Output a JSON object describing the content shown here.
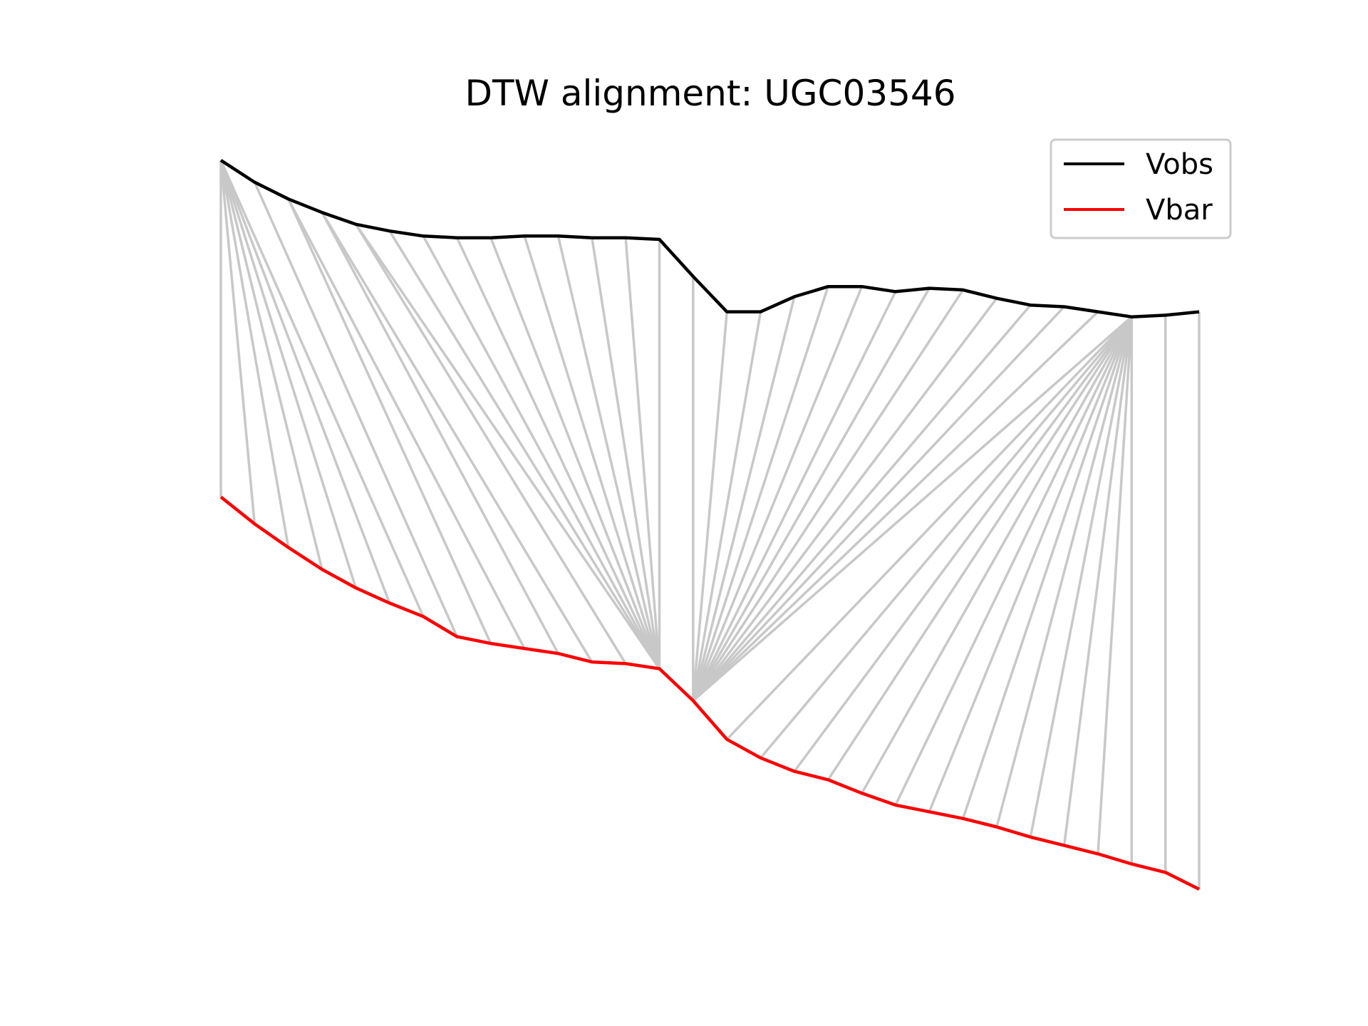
{
  "chart_data": {
    "type": "line",
    "title": "DTW alignment: UGC03546",
    "xlabel": "",
    "ylabel": "",
    "axes_visible": false,
    "grid": false,
    "legend_position": "top-right",
    "colors": {
      "Vobs": "#000000",
      "Vbar": "#ff0000",
      "connector": "#c8c8c8"
    },
    "x": [
      0,
      1,
      2,
      3,
      4,
      5,
      6,
      7,
      8,
      9,
      10,
      11,
      12,
      13,
      14,
      15,
      16,
      17,
      18,
      19,
      20,
      21,
      22,
      23,
      24,
      25,
      26,
      27,
      28,
      29
    ],
    "series": [
      {
        "name": "Vobs",
        "values": [
          10.0,
          9.87,
          9.77,
          9.69,
          9.62,
          9.58,
          9.55,
          9.54,
          9.54,
          9.55,
          9.55,
          9.54,
          9.54,
          9.53,
          9.31,
          9.1,
          9.1,
          9.19,
          9.25,
          9.25,
          9.22,
          9.24,
          9.23,
          9.18,
          9.14,
          9.13,
          9.1,
          9.07,
          9.08,
          9.1
        ]
      },
      {
        "name": "Vbar",
        "values": [
          8.0,
          7.84,
          7.7,
          7.57,
          7.46,
          7.37,
          7.29,
          7.17,
          7.13,
          7.1,
          7.07,
          7.02,
          7.01,
          6.98,
          6.79,
          6.56,
          6.45,
          6.37,
          6.32,
          6.24,
          6.17,
          6.13,
          6.09,
          6.04,
          5.98,
          5.93,
          5.88,
          5.82,
          5.77,
          5.67
        ]
      }
    ],
    "alignment_pairs": [
      [
        0,
        0
      ],
      [
        0,
        1
      ],
      [
        0,
        2
      ],
      [
        0,
        3
      ],
      [
        0,
        4
      ],
      [
        0,
        5
      ],
      [
        0,
        6
      ],
      [
        1,
        7
      ],
      [
        2,
        8
      ],
      [
        2,
        9
      ],
      [
        3,
        10
      ],
      [
        3,
        11
      ],
      [
        4,
        12
      ],
      [
        4,
        13
      ],
      [
        5,
        13
      ],
      [
        6,
        13
      ],
      [
        7,
        13
      ],
      [
        8,
        13
      ],
      [
        9,
        13
      ],
      [
        10,
        13
      ],
      [
        11,
        13
      ],
      [
        12,
        13
      ],
      [
        13,
        13
      ],
      [
        14,
        14
      ],
      [
        15,
        14
      ],
      [
        16,
        14
      ],
      [
        17,
        14
      ],
      [
        18,
        14
      ],
      [
        19,
        14
      ],
      [
        20,
        14
      ],
      [
        21,
        14
      ],
      [
        22,
        14
      ],
      [
        23,
        14
      ],
      [
        24,
        14
      ],
      [
        25,
        14
      ],
      [
        26,
        14
      ],
      [
        27,
        14
      ],
      [
        27,
        15
      ],
      [
        27,
        16
      ],
      [
        27,
        17
      ],
      [
        27,
        18
      ],
      [
        27,
        19
      ],
      [
        27,
        20
      ],
      [
        27,
        21
      ],
      [
        27,
        22
      ],
      [
        27,
        23
      ],
      [
        27,
        24
      ],
      [
        27,
        25
      ],
      [
        27,
        26
      ],
      [
        27,
        27
      ],
      [
        28,
        28
      ],
      [
        29,
        29
      ]
    ]
  }
}
